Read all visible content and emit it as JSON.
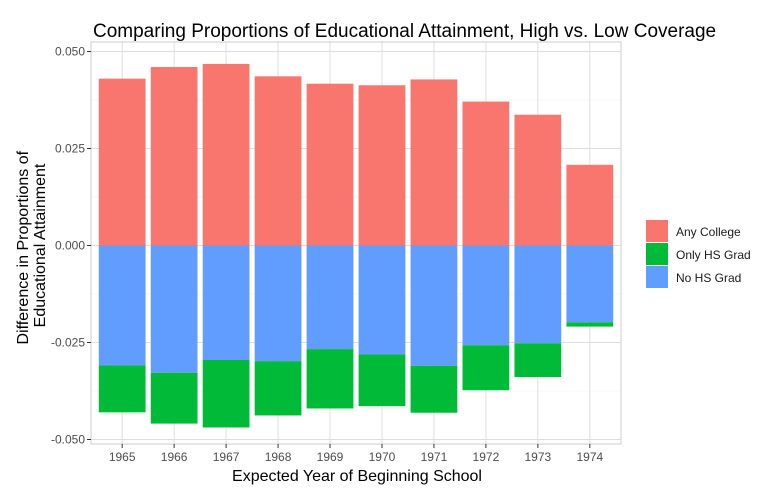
{
  "chart_data": {
    "type": "bar",
    "stacked": "diverging",
    "title": "Comparing Proportions of Educational Attainment, High vs. Low Coverage",
    "xlabel": "Expected Year of Beginning School",
    "ylabel_lines": [
      "Difference in Proportions of",
      "Educational Attainment"
    ],
    "categories": [
      "1965",
      "1966",
      "1967",
      "1968",
      "1969",
      "1970",
      "1971",
      "1972",
      "1973",
      "1974"
    ],
    "ylim": [
      -0.051,
      0.051
    ],
    "yticks": [
      -0.05,
      -0.025,
      0.0,
      0.025,
      0.05
    ],
    "ytick_labels": [
      "-0.050",
      "-0.025",
      "0.000",
      "0.025",
      "0.050"
    ],
    "grid": true,
    "legend_position": "right",
    "series": [
      {
        "name": "Any College",
        "color": "#F8766D",
        "values": [
          0.043,
          0.046,
          0.0468,
          0.0436,
          0.0417,
          0.0413,
          0.0428,
          0.0371,
          0.0337,
          0.0208
        ]
      },
      {
        "name": "Only HS Grad",
        "color": "#00BA38",
        "values": [
          -0.0121,
          -0.0131,
          -0.0174,
          -0.014,
          -0.0153,
          -0.0133,
          -0.0121,
          -0.0116,
          -0.0087,
          -0.0011
        ]
      },
      {
        "name": "No HS Grad",
        "color": "#619CFF",
        "values": [
          -0.0309,
          -0.0328,
          -0.0295,
          -0.0298,
          -0.0267,
          -0.0281,
          -0.031,
          -0.0257,
          -0.0252,
          -0.0198
        ]
      }
    ]
  }
}
